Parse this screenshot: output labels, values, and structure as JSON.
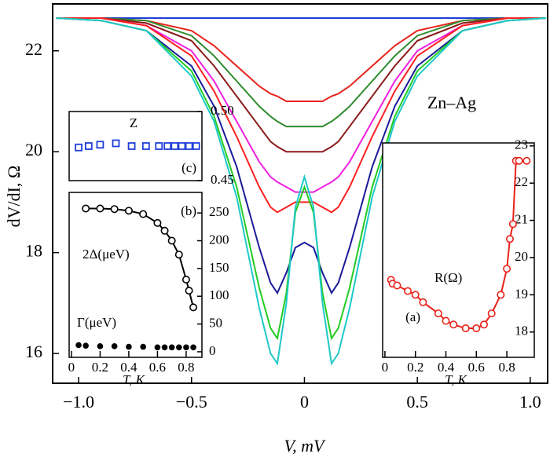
{
  "chart_data": [
    {
      "type": "line",
      "xlabel": "V, mV",
      "ylabel": "dV/dI, Ω",
      "annotation": "Zn–Ag",
      "xlim": [
        -1.115,
        1.077
      ],
      "ylim": [
        15.41,
        22.93
      ],
      "xticks": [
        {
          "value": -1,
          "label": "−1.0"
        },
        {
          "value": -0.5,
          "label": "−0.5"
        },
        0,
        0.5,
        {
          "value": 1,
          "label": "1.0"
        }
      ],
      "yticks": [
        16,
        18,
        20,
        22
      ],
      "x": [
        -1.1,
        -0.9,
        -0.7,
        -0.5,
        -0.4,
        -0.3,
        -0.2,
        -0.15,
        -0.12,
        -0.08,
        -0.04,
        0,
        0.04,
        0.08,
        0.12,
        0.15,
        0.2,
        0.3,
        0.4,
        0.5,
        0.7,
        0.9,
        1.07
      ],
      "series": [
        {
          "color": "#1f3fd8",
          "values": [
            22.65,
            22.65,
            22.65,
            22.65,
            22.65,
            22.65,
            22.65,
            22.65,
            22.65,
            22.65,
            22.65,
            22.65,
            22.65,
            22.65,
            22.65,
            22.65,
            22.65,
            22.65,
            22.65,
            22.65,
            22.65,
            22.65,
            22.65
          ]
        },
        {
          "color": "#e8221a",
          "values": [
            22.65,
            22.65,
            22.6,
            22.4,
            22.1,
            21.7,
            21.3,
            21.15,
            21.1,
            21.0,
            21.0,
            21.0,
            21.0,
            21.0,
            21.1,
            21.15,
            21.3,
            21.7,
            22.1,
            22.4,
            22.6,
            22.65,
            22.65
          ]
        },
        {
          "color": "#2e8b2e",
          "values": [
            22.65,
            22.65,
            22.6,
            22.3,
            21.9,
            21.4,
            20.9,
            20.7,
            20.6,
            20.5,
            20.5,
            20.5,
            20.5,
            20.5,
            20.6,
            20.7,
            20.9,
            21.4,
            21.9,
            22.3,
            22.6,
            22.65,
            22.65
          ]
        },
        {
          "color": "#8b1a1a",
          "values": [
            22.65,
            22.65,
            22.55,
            22.2,
            21.7,
            21.1,
            20.5,
            20.2,
            20.1,
            20.0,
            20.0,
            20.0,
            20.0,
            20.0,
            20.1,
            20.2,
            20.5,
            21.1,
            21.7,
            22.2,
            22.55,
            22.65,
            22.65
          ]
        },
        {
          "color": "#f020e0",
          "values": [
            22.65,
            22.65,
            22.5,
            22.0,
            21.4,
            20.6,
            19.8,
            19.5,
            19.4,
            19.3,
            19.2,
            19.2,
            19.2,
            19.3,
            19.4,
            19.5,
            19.8,
            20.6,
            21.4,
            22.0,
            22.5,
            22.65,
            22.65
          ]
        },
        {
          "color": "#ff2020",
          "values": [
            22.65,
            22.65,
            22.5,
            21.9,
            21.2,
            20.3,
            19.3,
            18.9,
            18.8,
            18.9,
            19.0,
            19.0,
            19.0,
            18.9,
            18.8,
            18.9,
            19.3,
            20.3,
            21.2,
            21.9,
            22.5,
            22.65,
            22.65
          ]
        },
        {
          "color": "#1a1a9a",
          "values": [
            22.65,
            22.6,
            22.4,
            21.7,
            20.9,
            19.7,
            18.1,
            17.4,
            17.2,
            17.6,
            18.1,
            18.2,
            18.1,
            17.6,
            17.2,
            17.4,
            18.1,
            19.7,
            20.9,
            21.7,
            22.4,
            22.6,
            22.65
          ]
        },
        {
          "color": "#22cc22",
          "values": [
            22.65,
            22.6,
            22.4,
            21.6,
            20.7,
            19.3,
            17.3,
            16.5,
            16.3,
            17.2,
            18.8,
            19.3,
            18.8,
            17.2,
            16.3,
            16.5,
            17.3,
            19.3,
            20.7,
            21.6,
            22.4,
            22.6,
            22.65
          ]
        },
        {
          "color": "#20c8c8",
          "values": [
            22.65,
            22.6,
            22.4,
            21.5,
            20.6,
            19.1,
            16.9,
            16.0,
            15.8,
            17.0,
            18.9,
            19.5,
            18.9,
            17.0,
            15.8,
            16.0,
            16.9,
            19.1,
            20.6,
            21.5,
            22.4,
            22.6,
            22.65
          ]
        }
      ]
    },
    {
      "type": "scatter",
      "ylabel": "Z",
      "panel_label": "(c)",
      "xlim": [
        -0.016,
        0.91
      ],
      "ylim": [
        0.45,
        0.5
      ],
      "yticks": [
        {
          "value": 0.5,
          "label": "0.50"
        },
        {
          "value": 0.45,
          "label": "0.45"
        }
      ],
      "series": [
        {
          "color": "#1f3fd8",
          "marker": "square",
          "x": [
            0.05,
            0.12,
            0.2,
            0.31,
            0.42,
            0.52,
            0.61,
            0.67,
            0.72,
            0.77,
            0.82,
            0.87
          ],
          "values": [
            0.474,
            0.475,
            0.476,
            0.477,
            0.475,
            0.475,
            0.475,
            0.475,
            0.475,
            0.475,
            0.475,
            0.475
          ]
        }
      ]
    },
    {
      "type": "scatter",
      "xlabel": "T, K",
      "panel_label": "(b)",
      "xlim": [
        -0.016,
        0.91
      ],
      "ylim": [
        -10,
        287
      ],
      "xticks": [
        0,
        0.2,
        0.4,
        0.6,
        0.8
      ],
      "yticks": [
        0,
        50,
        100,
        150,
        200,
        250
      ],
      "series": [
        {
          "name": "2Δ(μeV)",
          "color": "#000000",
          "marker": "circle",
          "line": true,
          "x": [
            0.1,
            0.2,
            0.3,
            0.4,
            0.5,
            0.6,
            0.65,
            0.7,
            0.75,
            0.8,
            0.82,
            0.85
          ],
          "values": [
            258,
            258,
            257,
            254,
            248,
            232,
            218,
            200,
            175,
            130,
            110,
            80
          ]
        },
        {
          "name": "Γ(μeV)",
          "color": "#000000",
          "marker": "filled-circle",
          "x": [
            0.05,
            0.1,
            0.2,
            0.3,
            0.4,
            0.5,
            0.6,
            0.65,
            0.7,
            0.75,
            0.8,
            0.85
          ],
          "values": [
            12,
            11,
            10,
            10,
            9,
            9,
            8,
            8,
            8,
            8,
            8,
            8
          ]
        }
      ]
    },
    {
      "type": "scatter",
      "xlabel": "T, K",
      "panel_label": "(a)",
      "xlim": [
        -0.015,
        0.98
      ],
      "ylim": [
        17.32,
        23.08
      ],
      "xticks": [
        0,
        0.2,
        0.4,
        0.6,
        0.8
      ],
      "yticks": [
        18,
        19,
        20,
        21,
        22,
        23
      ],
      "series": [
        {
          "name": "R(Ω)",
          "color": "#e8221a",
          "marker": "circle",
          "line": true,
          "x": [
            0.04,
            0.05,
            0.08,
            0.15,
            0.2,
            0.25,
            0.35,
            0.4,
            0.45,
            0.53,
            0.6,
            0.65,
            0.7,
            0.76,
            0.8,
            0.82,
            0.84,
            0.86,
            0.88,
            0.93
          ],
          "values": [
            19.4,
            19.3,
            19.25,
            19.1,
            19.0,
            18.8,
            18.5,
            18.3,
            18.2,
            18.1,
            18.1,
            18.2,
            18.5,
            19.0,
            19.7,
            20.5,
            20.9,
            22.6,
            22.6,
            22.6
          ]
        }
      ]
    }
  ]
}
